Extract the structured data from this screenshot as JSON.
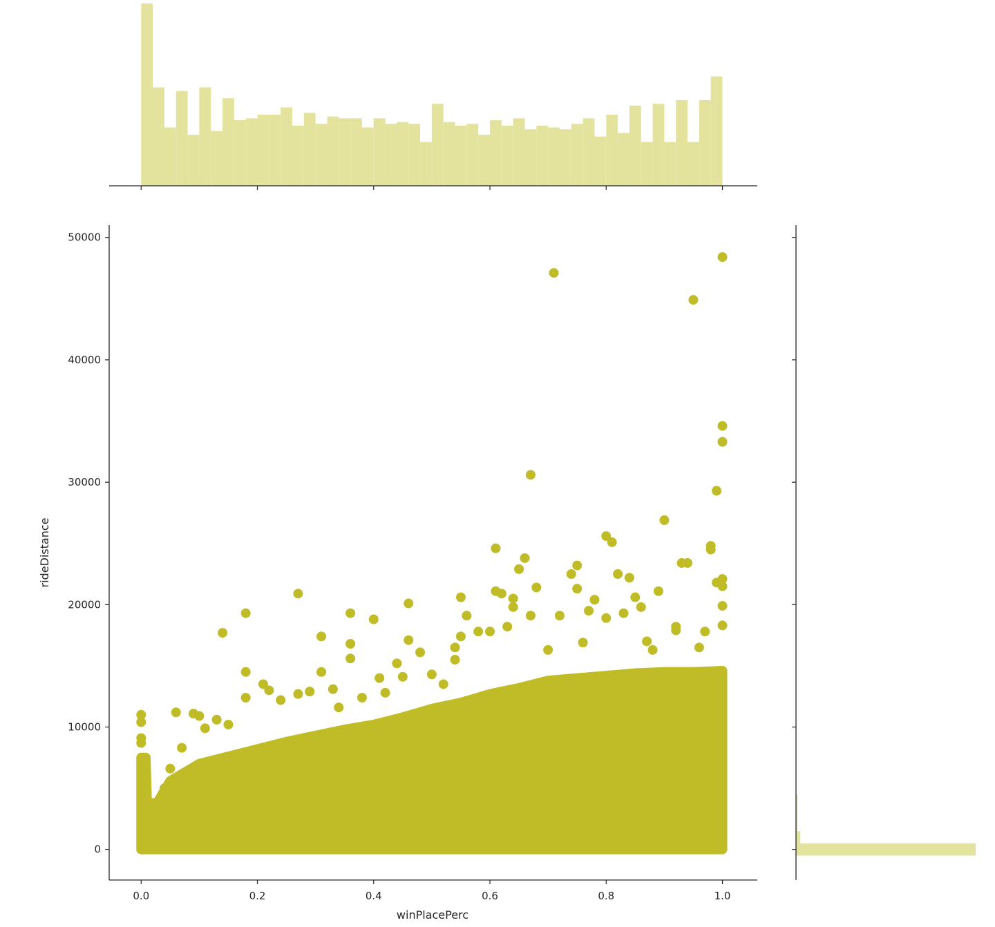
{
  "chart_data": {
    "type": "scatter",
    "title": "",
    "xlabel": "winPlacePerc",
    "ylabel": "rideDistance",
    "xlim": [
      -0.055,
      1.06
    ],
    "ylim": [
      -2500,
      51000
    ],
    "xticks": [
      0.0,
      0.2,
      0.4,
      0.6,
      0.8,
      1.0
    ],
    "xtick_labels": [
      "0.0",
      "0.2",
      "0.4",
      "0.6",
      "0.8",
      "1.0"
    ],
    "yticks": [
      0,
      10000,
      20000,
      30000,
      40000,
      50000
    ],
    "ytick_labels": [
      "0",
      "10000",
      "20000",
      "30000",
      "40000",
      "50000"
    ],
    "grid": false,
    "color": "#bfbc28",
    "hist_color": "#e4e39e",
    "dense_band": {
      "description_values": "upper edge of the densely packed point mass (x, max rideDistance)",
      "x": [
        0.0,
        0.008,
        0.012,
        0.03,
        0.05,
        0.1,
        0.15,
        0.2,
        0.25,
        0.3,
        0.35,
        0.4,
        0.45,
        0.5,
        0.55,
        0.6,
        0.65,
        0.7,
        0.75,
        0.8,
        0.85,
        0.9,
        0.95,
        1.0
      ],
      "y": [
        7500,
        7500,
        800,
        4000,
        5600,
        7000,
        7600,
        8200,
        8800,
        9300,
        9800,
        10200,
        10800,
        11500,
        12000,
        12700,
        13200,
        13800,
        14000,
        14200,
        14400,
        14500,
        14500,
        14600
      ]
    },
    "outliers": {
      "x": [
        0.0,
        0.0,
        0.0,
        0.0,
        0.02,
        0.04,
        0.05,
        0.06,
        0.07,
        0.09,
        0.1,
        0.11,
        0.13,
        0.14,
        0.15,
        0.18,
        0.18,
        0.18,
        0.21,
        0.22,
        0.24,
        0.27,
        0.27,
        0.29,
        0.31,
        0.31,
        0.33,
        0.34,
        0.36,
        0.36,
        0.36,
        0.38,
        0.4,
        0.41,
        0.42,
        0.44,
        0.45,
        0.46,
        0.46,
        0.48,
        0.5,
        0.52,
        0.54,
        0.54,
        0.55,
        0.55,
        0.56,
        0.58,
        0.6,
        0.61,
        0.61,
        0.62,
        0.63,
        0.64,
        0.64,
        0.65,
        0.66,
        0.67,
        0.67,
        0.68,
        0.7,
        0.71,
        0.72,
        0.74,
        0.75,
        0.75,
        0.76,
        0.77,
        0.78,
        0.8,
        0.8,
        0.81,
        0.82,
        0.83,
        0.84,
        0.85,
        0.86,
        0.87,
        0.88,
        0.89,
        0.9,
        0.92,
        0.92,
        0.93,
        0.94,
        0.95,
        0.96,
        0.97,
        0.98,
        0.98,
        0.99,
        0.99,
        1.0,
        1.0,
        1.0,
        1.0,
        1.0,
        1.0,
        1.0
      ],
      "y": [
        11000,
        10400,
        9100,
        8700,
        3800,
        5000,
        6600,
        11200,
        8300,
        11100,
        10900,
        9900,
        10600,
        17700,
        10200,
        19300,
        14500,
        12400,
        13500,
        13000,
        12200,
        20900,
        12700,
        12900,
        17400,
        14500,
        13100,
        11600,
        19300,
        16800,
        15600,
        12400,
        18800,
        14000,
        12800,
        15200,
        14100,
        20100,
        17100,
        16100,
        14300,
        13500,
        16500,
        15500,
        20600,
        17400,
        19100,
        17800,
        17800,
        24600,
        21100,
        20900,
        18200,
        19800,
        20500,
        22900,
        23800,
        30600,
        19100,
        21400,
        16300,
        47100,
        19100,
        22500,
        23200,
        21300,
        16900,
        19500,
        20400,
        25600,
        18900,
        25100,
        22500,
        19300,
        22200,
        20600,
        19800,
        17000,
        16300,
        21100,
        26900,
        18200,
        17900,
        23400,
        23400,
        44900,
        16500,
        17800,
        24500,
        24800,
        29300,
        21800,
        48400,
        34600,
        33300,
        22100,
        21500,
        19900,
        18300
      ]
    },
    "marginal_x_hist": {
      "bin_start": 0.0,
      "bin_width": 0.02,
      "counts": [
        100,
        54,
        32,
        52,
        28,
        54,
        30,
        48,
        36,
        37,
        39,
        39,
        43,
        33,
        40,
        34,
        38,
        37,
        37,
        32,
        37,
        34,
        35,
        34,
        24,
        45,
        35,
        33,
        34,
        28,
        36,
        33,
        37,
        31,
        33,
        32,
        31,
        34,
        37,
        27,
        39,
        29,
        44,
        24,
        45,
        24,
        47,
        24,
        47,
        60
      ]
    },
    "marginal_y_hist": {
      "bin_start": -500,
      "bin_width": 1000,
      "counts_relative": [
        100,
        2.4,
        0.6,
        0.3,
        0.1
      ]
    }
  }
}
